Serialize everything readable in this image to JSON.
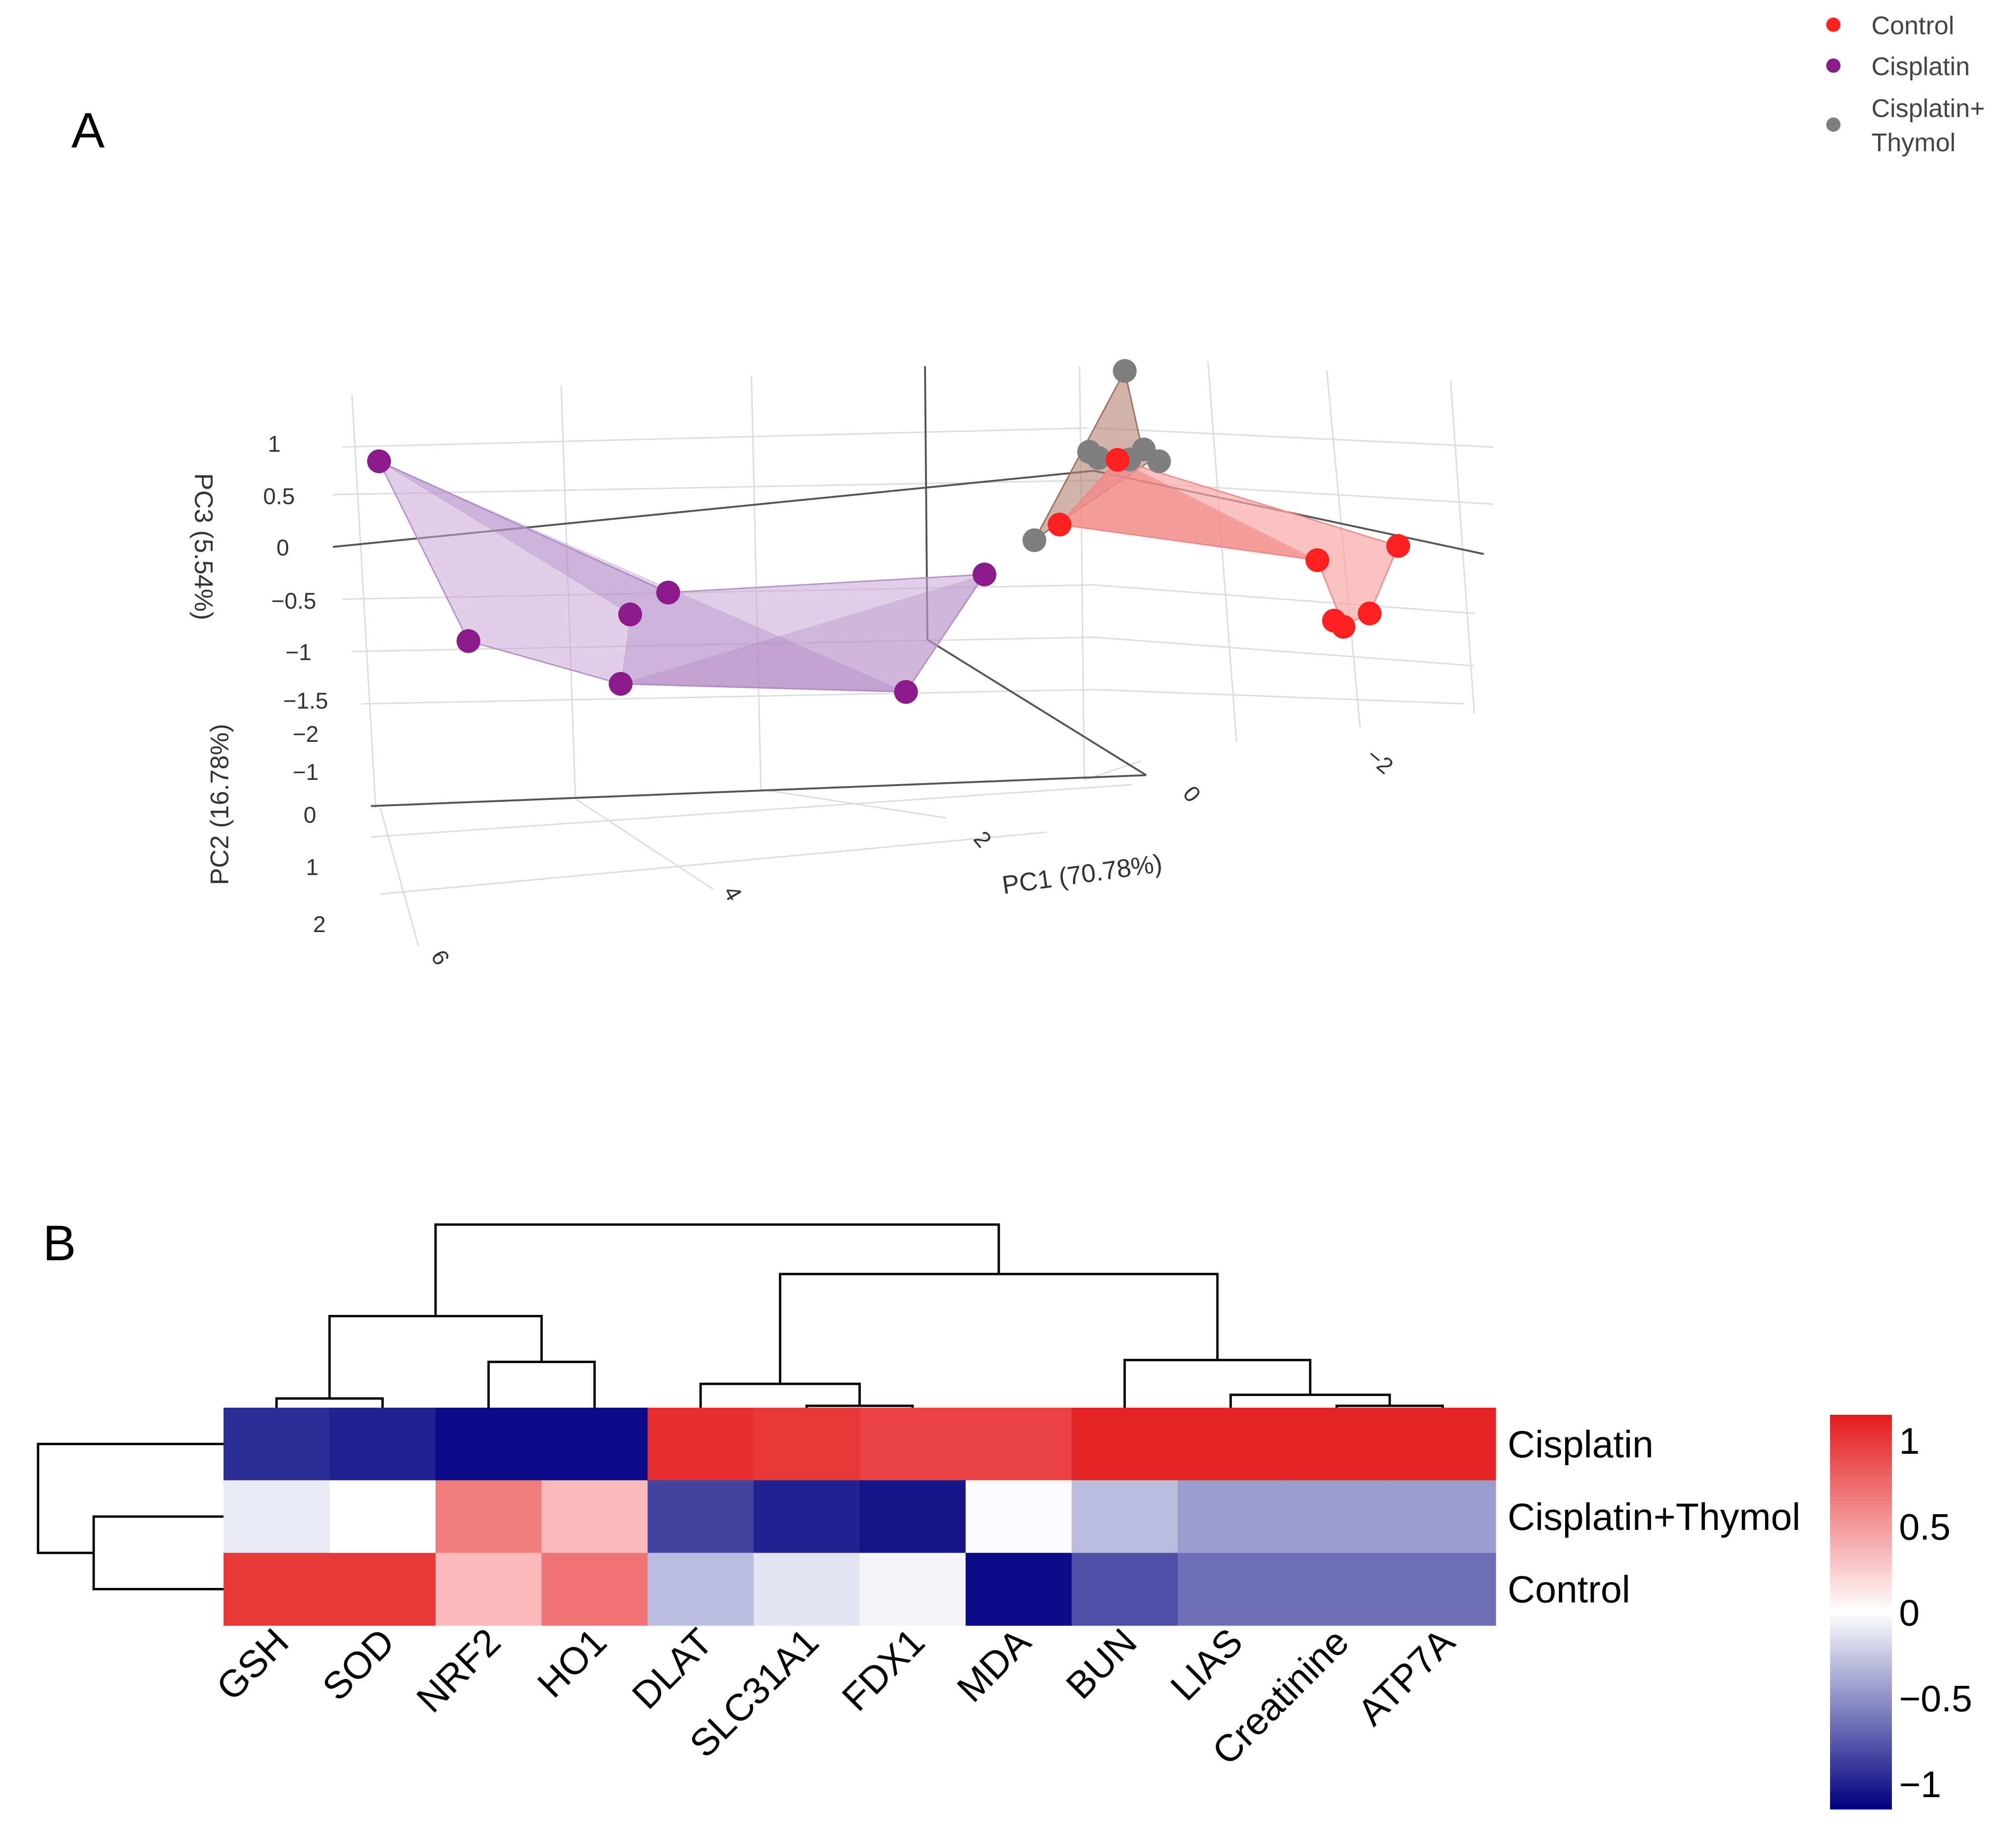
{
  "panel_labels": {
    "a": "A",
    "b": "B"
  },
  "colors": {
    "control": "#ff2020",
    "cisplatin": "#8b1a8b",
    "thymol": "#7f7f7f",
    "control_fill": "#f7a9a9",
    "cisplatin_fill": "#c9a8d6",
    "thymol_fill": "#c79a8a",
    "heat_low": "#00007f",
    "heat_mid": "#ffffff",
    "heat_high": "#e41a1c"
  },
  "chart_data": [
    {
      "type": "scatter",
      "subtype": "3d-pca",
      "title": "",
      "xlabel": "PC1 (70.78%)",
      "ylabel": "PC2 (16.78%)",
      "zlabel": "PC3 (5.54%)",
      "x_ticks": [
        "6",
        "4",
        "2",
        "0",
        "−2"
      ],
      "y_ticks": [
        "−2",
        "−1",
        "0",
        "1",
        "2"
      ],
      "z_ticks": [
        "1",
        "0.5",
        "0",
        "−0.5",
        "−1",
        "−1.5"
      ],
      "legend": {
        "position": "top-right",
        "entries": [
          {
            "key": "control",
            "label": "Control"
          },
          {
            "key": "cisplatin",
            "label": "Cisplatin"
          },
          {
            "key": "thymol",
            "label": "Cisplatin+\nThymol"
          }
        ]
      },
      "series": [
        {
          "name": "Control",
          "key": "control",
          "points": [
            [
              -0.6,
              0.6,
              -0.1
            ],
            [
              -2.7,
              0.2,
              -0.6
            ],
            [
              -2.8,
              0.5,
              -1.4
            ],
            [
              -2.9,
              0.6,
              -1.45
            ],
            [
              -3.3,
              0.3,
              -0.4
            ],
            [
              -3.6,
              0.1,
              -0.7
            ]
          ]
        },
        {
          "name": "Cisplatin",
          "key": "cisplatin",
          "points": [
            [
              6.8,
              -1.4,
              0.95
            ],
            [
              6.3,
              0.4,
              -1.05
            ],
            [
              4.9,
              -0.6,
              -0.75
            ],
            [
              5.0,
              0.7,
              -1.2
            ],
            [
              3.1,
              -1.9,
              -0.6
            ],
            [
              3.2,
              1.5,
              -1.1
            ]
          ]
        },
        {
          "name": "Cisplatin+Thymol",
          "key": "thymol",
          "points": [
            [
              -0.4,
              1.2,
              -0.2
            ],
            [
              -0.3,
              0.1,
              1.2
            ],
            [
              0.2,
              -0.8,
              0.3
            ],
            [
              -0.5,
              -0.4,
              0.2
            ],
            [
              -0.9,
              -0.6,
              0.3
            ],
            [
              -0.7,
              -0.2,
              0.2
            ]
          ]
        }
      ]
    },
    {
      "type": "heatmap",
      "rows": [
        "Cisplatin",
        "Cisplatin+Thymol",
        "Control"
      ],
      "columns": [
        "GSH",
        "SOD",
        "NRF2",
        "HO1",
        "DLAT",
        "SLC31A1",
        "FDX1",
        "MDA",
        "BUN",
        "LIAS",
        "Creatinine",
        "ATP7A"
      ],
      "values": [
        [
          -0.95,
          -1.0,
          -1.1,
          -1.1,
          1.05,
          1.0,
          0.95,
          0.95,
          1.1,
          1.1,
          1.1,
          1.1
        ],
        [
          -0.1,
          0.0,
          0.65,
          0.35,
          -0.85,
          -1.0,
          -1.05,
          -0.02,
          -0.3,
          -0.45,
          -0.45,
          -0.45
        ],
        [
          1.0,
          1.0,
          0.35,
          0.7,
          -0.3,
          -0.12,
          -0.05,
          -1.1,
          -0.8,
          -0.65,
          -0.65,
          -0.65
        ]
      ],
      "colorbar": {
        "range": [
          -1.15,
          1.15
        ],
        "ticks": [
          1,
          0.5,
          0,
          -0.5,
          -1
        ],
        "tick_labels": [
          "1",
          "0.5",
          "0",
          "−0.5",
          "−1"
        ]
      },
      "col_dendrogram": [
        {
          "a": 0,
          "b": 1,
          "h": 0.05
        },
        {
          "a": 2,
          "b": 3,
          "h": 0.25
        },
        {
          "a": 12,
          "b": 13,
          "h": 0.5
        },
        {
          "a": 5,
          "b": 6,
          "h": 0.01
        },
        {
          "a": 4,
          "b": 15,
          "h": 0.13
        },
        {
          "a": 10,
          "b": 11,
          "h": 0.01
        },
        {
          "a": 9,
          "b": 17,
          "h": 0.07
        },
        {
          "a": 8,
          "b": 18,
          "h": 0.26
        },
        {
          "a": 16,
          "b": 19,
          "h": 0.73
        },
        {
          "a": 14,
          "b": 20,
          "h": 1.0
        }
      ],
      "row_dendrogram": [
        {
          "a": 1,
          "b": 2,
          "h": 0.7
        },
        {
          "a": 0,
          "b": 3,
          "h": 1.0
        }
      ]
    }
  ]
}
